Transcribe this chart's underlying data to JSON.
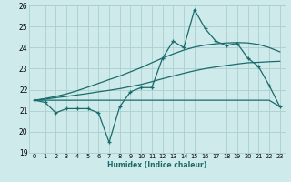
{
  "xlabel": "Humidex (Indice chaleur)",
  "bg_color": "#ceeaea",
  "grid_color": "#aacfcf",
  "line_color": "#1a6b6b",
  "x_values": [
    0,
    1,
    2,
    3,
    4,
    5,
    6,
    7,
    8,
    9,
    10,
    11,
    12,
    13,
    14,
    15,
    16,
    17,
    18,
    19,
    20,
    21,
    22,
    23
  ],
  "y_main": [
    21.5,
    21.4,
    20.9,
    21.1,
    21.1,
    21.1,
    20.9,
    19.5,
    21.2,
    21.9,
    22.1,
    22.1,
    23.5,
    24.3,
    24.0,
    25.8,
    24.9,
    24.3,
    24.1,
    24.2,
    23.5,
    23.1,
    22.2,
    21.2
  ],
  "y_flat": [
    21.5,
    21.5,
    21.5,
    21.5,
    21.5,
    21.5,
    21.5,
    21.5,
    21.5,
    21.5,
    21.5,
    21.5,
    21.5,
    21.5,
    21.5,
    21.5,
    21.5,
    21.5,
    21.5,
    21.5,
    21.5,
    21.5,
    21.5,
    21.2
  ],
  "y_trend_low": [
    21.5,
    21.55,
    21.62,
    21.68,
    21.75,
    21.82,
    21.9,
    21.97,
    22.05,
    22.15,
    22.25,
    22.38,
    22.52,
    22.65,
    22.78,
    22.9,
    23.0,
    23.08,
    23.15,
    23.22,
    23.28,
    23.3,
    23.33,
    23.35
  ],
  "y_trend_high": [
    21.5,
    21.58,
    21.68,
    21.8,
    21.95,
    22.12,
    22.3,
    22.48,
    22.65,
    22.85,
    23.05,
    23.28,
    23.5,
    23.7,
    23.88,
    24.02,
    24.12,
    24.18,
    24.22,
    24.24,
    24.22,
    24.15,
    24.0,
    23.8
  ],
  "ylim": [
    19,
    26
  ],
  "xlim": [
    -0.5,
    23.5
  ],
  "yticks": [
    19,
    20,
    21,
    22,
    23,
    24,
    25,
    26
  ],
  "xticks": [
    0,
    1,
    2,
    3,
    4,
    5,
    6,
    7,
    8,
    9,
    10,
    11,
    12,
    13,
    14,
    15,
    16,
    17,
    18,
    19,
    20,
    21,
    22,
    23
  ]
}
